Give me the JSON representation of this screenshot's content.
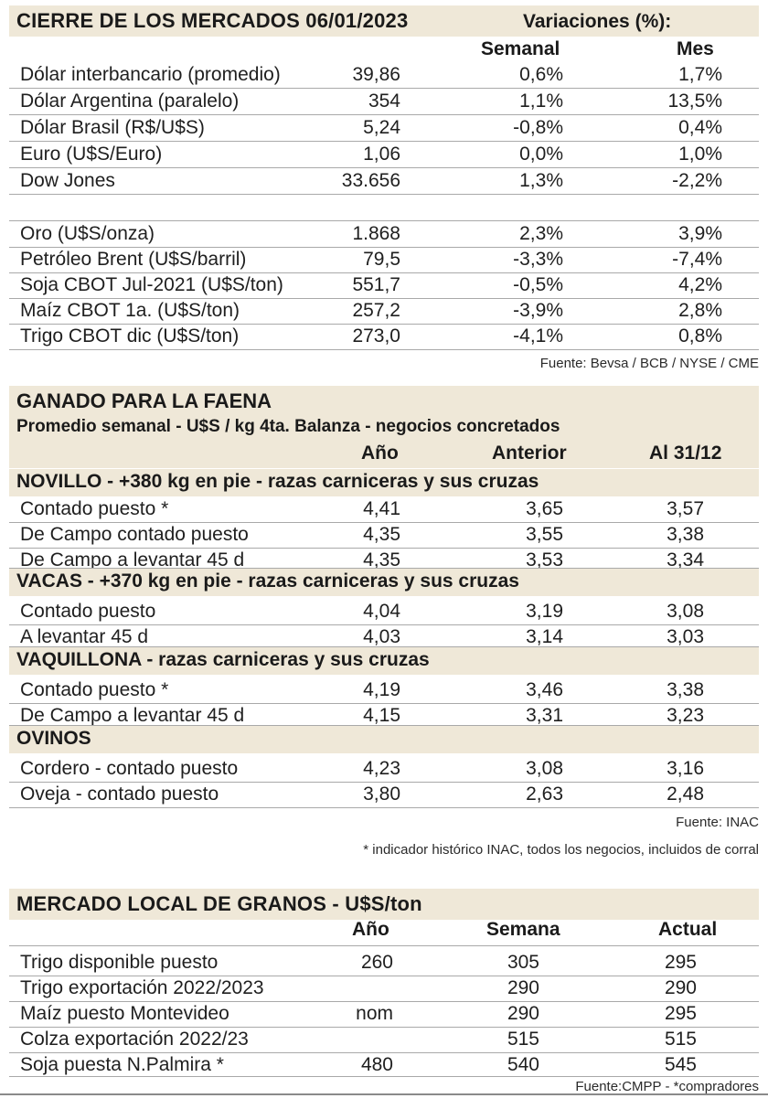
{
  "markets": {
    "title": "CIERRE DE LOS MERCADOS 06/01/2023",
    "variations_label": "Variaciones (%):",
    "col_week": "Semanal",
    "col_month": "Mes",
    "rows": [
      {
        "label": "Dólar interbancario (promedio)",
        "value": "39,86",
        "week": "0,6%",
        "month": "1,7%"
      },
      {
        "label": "Dólar Argentina (paralelo)",
        "value": "354",
        "week": "1,1%",
        "month": "13,5%"
      },
      {
        "label": "Dólar Brasil (R$/U$S)",
        "value": "5,24",
        "week": "-0,8%",
        "month": "0,4%"
      },
      {
        "label": "Euro (U$S/Euro)",
        "value": "1,06",
        "week": "0,0%",
        "month": "1,0%"
      },
      {
        "label": "Dow Jones",
        "value": "33.656",
        "week": "1,3%",
        "month": "-2,2%"
      },
      {
        "label": "Oro (U$S/onza)",
        "value": "1.868",
        "week": "2,3%",
        "month": "3,9%"
      },
      {
        "label": "Petróleo Brent (U$S/barril)",
        "value": "79,5",
        "week": "-3,3%",
        "month": "-7,4%"
      },
      {
        "label": "Soja CBOT Jul-2021 (U$S/ton)",
        "value": "551,7",
        "week": "-0,5%",
        "month": "4,2%"
      },
      {
        "label": "Maíz CBOT 1a. (U$S/ton)",
        "value": "257,2",
        "week": "-3,9%",
        "month": "2,8%"
      },
      {
        "label": "Trigo CBOT dic (U$S/ton)",
        "value": "273,0",
        "week": "-4,1%",
        "month": "0,8%"
      }
    ],
    "source": "Fuente: Bevsa / BCB / NYSE / CME"
  },
  "cattle": {
    "title": "GANADO PARA LA FAENA",
    "subtitle": "Promedio semanal - U$S / kg 4ta. Balanza - negocios concretados",
    "col_year": "Año",
    "col_prev": "Anterior",
    "col_date": "Al 31/12",
    "groups": [
      {
        "title": "NOVILLO - +380 kg en pie - razas carniceras y sus cruzas",
        "rows": [
          {
            "label": "Contado puesto *",
            "year": "4,41",
            "prev": "3,65",
            "date": "3,57"
          },
          {
            "label": "De Campo contado puesto",
            "year": "4,35",
            "prev": "3,55",
            "date": "3,38"
          },
          {
            "label": "De Campo a levantar 45 d",
            "year": "4,35",
            "prev": "3,53",
            "date": "3,34"
          }
        ]
      },
      {
        "title": "VACAS - +370 kg en pie - razas carniceras y sus cruzas",
        "rows": [
          {
            "label": "Contado puesto",
            "year": "4,04",
            "prev": "3,19",
            "date": "3,08"
          },
          {
            "label": "A levantar 45 d",
            "year": "4,03",
            "prev": "3,14",
            "date": "3,03"
          }
        ]
      },
      {
        "title": "VAQUILLONA - razas carniceras y sus cruzas",
        "rows": [
          {
            "label": "Contado puesto *",
            "year": "4,19",
            "prev": "3,46",
            "date": "3,38"
          },
          {
            "label": "De Campo a levantar 45 d",
            "year": "4,15",
            "prev": "3,31",
            "date": "3,23"
          }
        ]
      },
      {
        "title": "OVINOS",
        "rows": [
          {
            "label": "Cordero - contado puesto",
            "year": "4,23",
            "prev": "3,08",
            "date": "3,16"
          },
          {
            "label": "Oveja - contado puesto",
            "year": "3,80",
            "prev": "2,63",
            "date": "2,48"
          }
        ]
      }
    ],
    "source": "Fuente: INAC",
    "footnote": "* indicador histórico INAC, todos los negocios, incluidos de corral"
  },
  "grains": {
    "title": "MERCADO LOCAL DE GRANOS - U$S/ton",
    "col_year": "Año",
    "col_week": "Semana",
    "col_current": "Actual",
    "rows": [
      {
        "label": "Trigo disponible puesto",
        "year": "260",
        "week": "305",
        "current": "295"
      },
      {
        "label": "Trigo exportación 2022/2023",
        "year": "",
        "week": "290",
        "current": "290"
      },
      {
        "label": "Maíz puesto Montevideo",
        "year": "nom",
        "week": "290",
        "current": "295"
      },
      {
        "label": "Colza exportación 2022/23",
        "year": "",
        "week": "515",
        "current": "515"
      },
      {
        "label": "Soja puesta N.Palmira *",
        "year": "480",
        "week": "540",
        "current": "545"
      }
    ],
    "source": "Fuente:CMPP - *compradores"
  }
}
